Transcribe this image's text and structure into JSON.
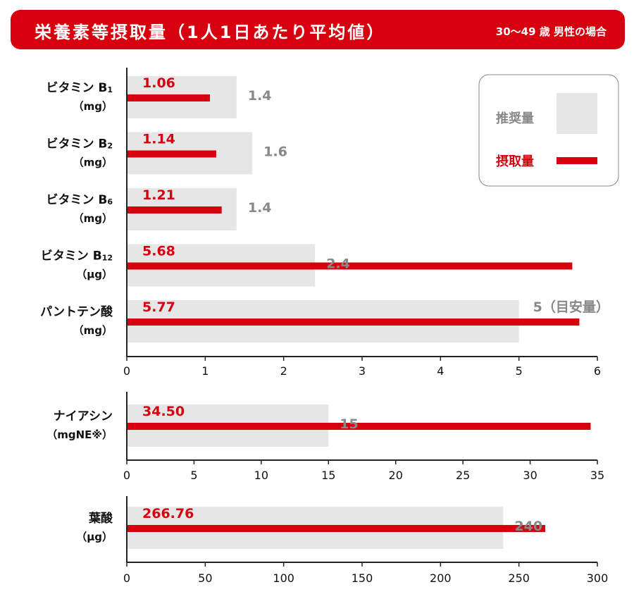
{
  "header": {
    "title": "栄養素等摂取量（1人1日あたり平均値）",
    "subtitle": "30〜49 歳 男性の場合"
  },
  "colors": {
    "banner": "#d7000f",
    "intake": "#d7000f",
    "recommended": "#e6e6e6",
    "intake_text": "#d7000f",
    "recommended_text": "#888888"
  },
  "legend": {
    "recommended_label": "推奨量",
    "intake_label": "摂取量"
  },
  "chart_data": [
    {
      "type": "bar",
      "orientation": "horizontal",
      "xlim": [
        0,
        6
      ],
      "xticks": [
        "0",
        "1",
        "2",
        "3",
        "4",
        "5",
        "6"
      ],
      "categories": [
        {
          "name": "ビタミン B",
          "sub": "1",
          "unit": "（mg）"
        },
        {
          "name": "ビタミン B",
          "sub": "2",
          "unit": "（mg）"
        },
        {
          "name": "ビタミン B",
          "sub": "6",
          "unit": "（mg）"
        },
        {
          "name": "ビタミン B",
          "sub": "12",
          "unit": "（μg）"
        },
        {
          "name": "パントテン酸",
          "sub": "",
          "unit": "（mg）"
        }
      ],
      "series": [
        {
          "name": "推奨量",
          "values": [
            1.4,
            1.6,
            1.4,
            2.4,
            5
          ],
          "labels": [
            "1.4",
            "1.6",
            "1.4",
            "2.4",
            "5（目安量）"
          ]
        },
        {
          "name": "摂取量",
          "values": [
            1.06,
            1.14,
            1.21,
            5.68,
            5.77
          ],
          "labels": [
            "1.06",
            "1.14",
            "1.21",
            "5.68",
            "5.77"
          ]
        }
      ]
    },
    {
      "type": "bar",
      "orientation": "horizontal",
      "xlim": [
        0,
        35
      ],
      "xticks": [
        "0",
        "5",
        "10",
        "15",
        "20",
        "25",
        "30",
        "35"
      ],
      "categories": [
        {
          "name": "ナイアシン",
          "sub": "",
          "unit": "（mgNE※）"
        }
      ],
      "series": [
        {
          "name": "推奨量",
          "values": [
            15
          ],
          "labels": [
            "15"
          ]
        },
        {
          "name": "摂取量",
          "values": [
            34.5
          ],
          "labels": [
            "34.50"
          ]
        }
      ]
    },
    {
      "type": "bar",
      "orientation": "horizontal",
      "xlim": [
        0,
        300
      ],
      "xticks": [
        "0",
        "50",
        "100",
        "150",
        "200",
        "250",
        "300"
      ],
      "categories": [
        {
          "name": "葉酸",
          "sub": "",
          "unit": "（μg）"
        }
      ],
      "series": [
        {
          "name": "推奨量",
          "values": [
            240
          ],
          "labels": [
            "240"
          ]
        },
        {
          "name": "摂取量",
          "values": [
            266.76
          ],
          "labels": [
            "266.76"
          ]
        }
      ]
    }
  ]
}
